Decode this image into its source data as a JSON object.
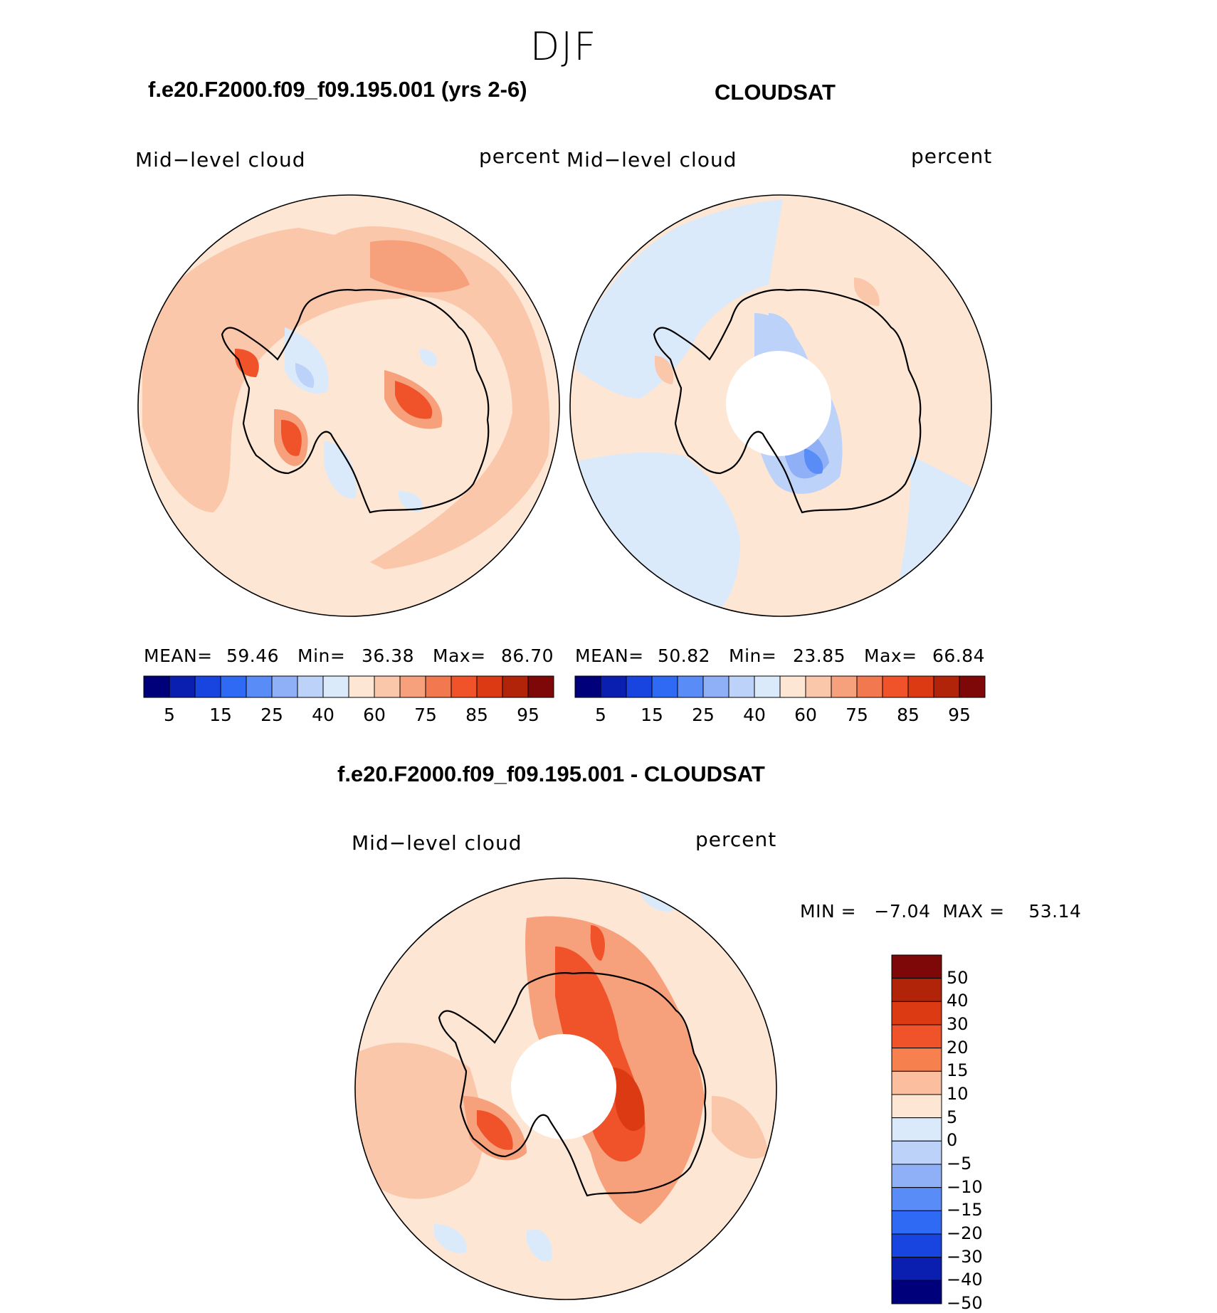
{
  "season": "DJF",
  "panel_left": {
    "case_title": "f.e20.F2000.f09_f09.195.001 (yrs 2-6)",
    "variable": "Mid−level cloud",
    "units": "percent",
    "mean_label": "MEAN=",
    "mean_value": "59.46",
    "min_label": "Min=",
    "min_value": "36.38",
    "max_label": "Max=",
    "max_value": "86.70",
    "colorbar_ticks": [
      "5",
      "15",
      "25",
      "40",
      "60",
      "75",
      "85",
      "95"
    ]
  },
  "panel_right": {
    "case_title": "CLOUDSAT",
    "variable": "Mid−level cloud",
    "units": "percent",
    "mean_label": "MEAN=",
    "mean_value": "50.82",
    "min_label": "Min=",
    "min_value": "23.85",
    "max_label": "Max=",
    "max_value": "66.84",
    "colorbar_ticks": [
      "5",
      "15",
      "25",
      "40",
      "60",
      "75",
      "85",
      "95"
    ]
  },
  "panel_diff": {
    "case_title": "f.e20.F2000.f09_f09.195.001 - CLOUDSAT",
    "variable": "Mid−level cloud",
    "units": "percent",
    "minmax_label": "MIN =   −7.04  MAX =    53.14",
    "colorbar_ticks": [
      "50",
      "40",
      "30",
      "20",
      "15",
      "10",
      "5",
      "0",
      "−5",
      "−10",
      "−15",
      "−20",
      "−30",
      "−40",
      "−50"
    ]
  },
  "colors": {
    "seq_palette": [
      "#00007a",
      "#0a1fb0",
      "#1844e0",
      "#2f6af5",
      "#5a8cf7",
      "#8fb0f7",
      "#bcd2f8",
      "#dbeafb",
      "#fde6d4",
      "#fbc7ab",
      "#f7a07c",
      "#f1784f",
      "#f0522a",
      "#dc3a12",
      "#b12409",
      "#7e0808"
    ],
    "diff_palette": [
      "#7e0808",
      "#b12409",
      "#dc3a12",
      "#f0522a",
      "#f7804f",
      "#fbbf9f",
      "#fde6d4",
      "#dbeafb",
      "#bcd2f8",
      "#8fb0f7",
      "#5a8cf7",
      "#2f6af5",
      "#1844e0",
      "#0a1fb0",
      "#00007a"
    ],
    "map_background_light": "#fde6d4",
    "map_light_blue": "#dbeafb",
    "map_peach": "#fbc7ab",
    "map_orange": "#f7a07c"
  }
}
